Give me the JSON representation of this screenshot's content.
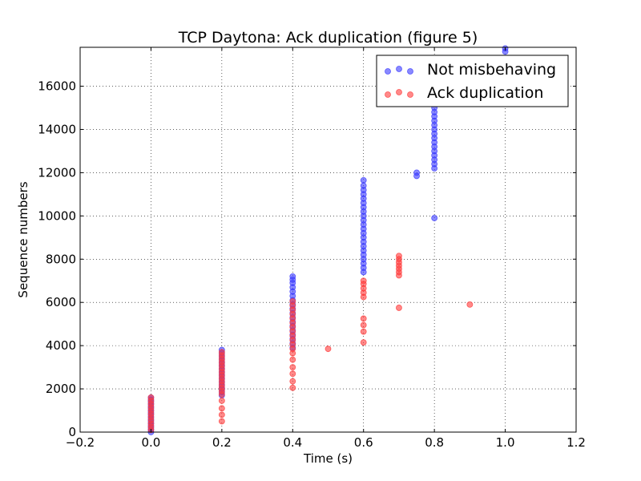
{
  "chart_data": {
    "type": "scatter",
    "title": "TCP Daytona: Ack duplication (figure 5)",
    "xlabel": "Time (s)",
    "ylabel": "Sequence numbers",
    "xlim": [
      -0.2,
      1.2
    ],
    "ylim": [
      0,
      17800
    ],
    "x_ticks": [
      -0.2,
      0.0,
      0.2,
      0.4,
      0.6,
      0.8,
      1.0,
      1.2
    ],
    "x_tick_labels": [
      "−0.2",
      "0.0",
      "0.2",
      "0.4",
      "0.6",
      "0.8",
      "1.0",
      "1.2"
    ],
    "y_ticks": [
      0,
      2000,
      4000,
      6000,
      8000,
      10000,
      12000,
      14000,
      16000
    ],
    "y_tick_labels": [
      "0",
      "2000",
      "4000",
      "6000",
      "8000",
      "10000",
      "12000",
      "14000",
      "16000"
    ],
    "grid": true,
    "legend_position": "top-right",
    "series": [
      {
        "name": "Not misbehaving",
        "color": "#3b3bff",
        "points": [
          [
            0.0,
            0
          ],
          [
            0.0,
            100
          ],
          [
            0.0,
            200
          ],
          [
            0.0,
            300
          ],
          [
            0.0,
            400
          ],
          [
            0.0,
            500
          ],
          [
            0.0,
            600
          ],
          [
            0.0,
            700
          ],
          [
            0.0,
            800
          ],
          [
            0.0,
            900
          ],
          [
            0.0,
            1000
          ],
          [
            0.0,
            1100
          ],
          [
            0.0,
            1200
          ],
          [
            0.0,
            1300
          ],
          [
            0.0,
            1400
          ],
          [
            0.0,
            1500
          ],
          [
            0.0,
            1600
          ],
          [
            0.2,
            1700
          ],
          [
            0.2,
            1850
          ],
          [
            0.2,
            2000
          ],
          [
            0.2,
            2150
          ],
          [
            0.2,
            2300
          ],
          [
            0.2,
            2450
          ],
          [
            0.2,
            2600
          ],
          [
            0.2,
            2750
          ],
          [
            0.2,
            2900
          ],
          [
            0.2,
            3050
          ],
          [
            0.2,
            3200
          ],
          [
            0.2,
            3350
          ],
          [
            0.2,
            3500
          ],
          [
            0.2,
            3650
          ],
          [
            0.2,
            3800
          ],
          [
            0.4,
            3900
          ],
          [
            0.4,
            4100
          ],
          [
            0.4,
            4300
          ],
          [
            0.4,
            4500
          ],
          [
            0.4,
            4700
          ],
          [
            0.4,
            4900
          ],
          [
            0.4,
            5100
          ],
          [
            0.4,
            5300
          ],
          [
            0.4,
            5500
          ],
          [
            0.4,
            5700
          ],
          [
            0.4,
            5900
          ],
          [
            0.4,
            6100
          ],
          [
            0.4,
            6300
          ],
          [
            0.4,
            6500
          ],
          [
            0.4,
            6700
          ],
          [
            0.4,
            6900
          ],
          [
            0.4,
            7050
          ],
          [
            0.4,
            7200
          ],
          [
            0.6,
            7400
          ],
          [
            0.6,
            7600
          ],
          [
            0.6,
            7800
          ],
          [
            0.6,
            8000
          ],
          [
            0.6,
            8200
          ],
          [
            0.6,
            8400
          ],
          [
            0.6,
            8600
          ],
          [
            0.6,
            8800
          ],
          [
            0.6,
            9000
          ],
          [
            0.6,
            9200
          ],
          [
            0.6,
            9400
          ],
          [
            0.6,
            9600
          ],
          [
            0.6,
            9800
          ],
          [
            0.6,
            10000
          ],
          [
            0.6,
            10200
          ],
          [
            0.6,
            10400
          ],
          [
            0.6,
            10600
          ],
          [
            0.6,
            10800
          ],
          [
            0.6,
            11000
          ],
          [
            0.6,
            11200
          ],
          [
            0.6,
            11400
          ],
          [
            0.6,
            11650
          ],
          [
            0.75,
            11850
          ],
          [
            0.75,
            12000
          ],
          [
            0.8,
            9900
          ],
          [
            0.8,
            12200
          ],
          [
            0.8,
            12400
          ],
          [
            0.8,
            12600
          ],
          [
            0.8,
            12800
          ],
          [
            0.8,
            13000
          ],
          [
            0.8,
            13200
          ],
          [
            0.8,
            13400
          ],
          [
            0.8,
            13600
          ],
          [
            0.8,
            13800
          ],
          [
            0.8,
            14000
          ],
          [
            0.8,
            14200
          ],
          [
            0.8,
            14400
          ],
          [
            0.8,
            14600
          ],
          [
            0.8,
            14800
          ],
          [
            0.8,
            15000
          ],
          [
            1.0,
            17600
          ],
          [
            1.0,
            17750
          ]
        ]
      },
      {
        "name": "Ack duplication",
        "color": "#ff3b3b",
        "points": [
          [
            0.0,
            100
          ],
          [
            0.0,
            250
          ],
          [
            0.0,
            400
          ],
          [
            0.0,
            550
          ],
          [
            0.0,
            700
          ],
          [
            0.0,
            850
          ],
          [
            0.0,
            1000
          ],
          [
            0.0,
            1150
          ],
          [
            0.0,
            1300
          ],
          [
            0.0,
            1450
          ],
          [
            0.0,
            1600
          ],
          [
            0.2,
            500
          ],
          [
            0.2,
            800
          ],
          [
            0.2,
            1100
          ],
          [
            0.2,
            1450
          ],
          [
            0.2,
            1750
          ],
          [
            0.2,
            1900
          ],
          [
            0.2,
            2050
          ],
          [
            0.2,
            2200
          ],
          [
            0.2,
            2350
          ],
          [
            0.2,
            2500
          ],
          [
            0.2,
            2650
          ],
          [
            0.2,
            2800
          ],
          [
            0.2,
            2950
          ],
          [
            0.2,
            3100
          ],
          [
            0.2,
            3250
          ],
          [
            0.2,
            3400
          ],
          [
            0.2,
            3550
          ],
          [
            0.2,
            3700
          ],
          [
            0.4,
            2050
          ],
          [
            0.4,
            2350
          ],
          [
            0.4,
            2700
          ],
          [
            0.4,
            3000
          ],
          [
            0.4,
            3350
          ],
          [
            0.4,
            3650
          ],
          [
            0.4,
            3850
          ],
          [
            0.4,
            4050
          ],
          [
            0.4,
            4250
          ],
          [
            0.4,
            4450
          ],
          [
            0.4,
            4650
          ],
          [
            0.4,
            4850
          ],
          [
            0.4,
            5050
          ],
          [
            0.4,
            5250
          ],
          [
            0.4,
            5450
          ],
          [
            0.4,
            5650
          ],
          [
            0.4,
            5850
          ],
          [
            0.4,
            6050
          ],
          [
            0.5,
            3850
          ],
          [
            0.6,
            4150
          ],
          [
            0.6,
            4650
          ],
          [
            0.6,
            4950
          ],
          [
            0.6,
            5250
          ],
          [
            0.6,
            6250
          ],
          [
            0.6,
            6450
          ],
          [
            0.6,
            6650
          ],
          [
            0.6,
            6850
          ],
          [
            0.6,
            7000
          ],
          [
            0.7,
            5750
          ],
          [
            0.7,
            7250
          ],
          [
            0.7,
            7400
          ],
          [
            0.7,
            7550
          ],
          [
            0.7,
            7700
          ],
          [
            0.7,
            7850
          ],
          [
            0.7,
            8000
          ],
          [
            0.7,
            8150
          ],
          [
            0.9,
            5900
          ]
        ]
      }
    ]
  }
}
